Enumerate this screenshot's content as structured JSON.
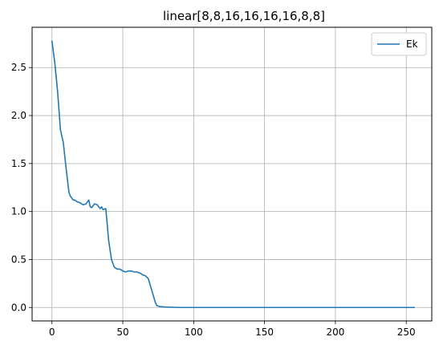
{
  "chart_data": {
    "type": "line",
    "title": "linear[8,8,16,16,16,16,8,8]",
    "xlabel": "",
    "ylabel": "",
    "xlim": [
      -14,
      268
    ],
    "ylim": [
      -0.14,
      2.92
    ],
    "xticks": [
      0,
      50,
      100,
      150,
      200,
      250
    ],
    "yticks": [
      0.0,
      0.5,
      1.0,
      1.5,
      2.0,
      2.5
    ],
    "xtick_labels": [
      "0",
      "50",
      "100",
      "150",
      "200",
      "250"
    ],
    "ytick_labels": [
      "0.0",
      "0.5",
      "1.0",
      "1.5",
      "2.0",
      "2.5"
    ],
    "grid": true,
    "legend": {
      "placement": "top-right"
    },
    "line_color": "#1f77b4",
    "series": [
      {
        "name": "Ek",
        "x": [
          0,
          2,
          4,
          6,
          8,
          10,
          12,
          13,
          14,
          15,
          16,
          18,
          20,
          22,
          24,
          26,
          27,
          28,
          30,
          32,
          34,
          35,
          36,
          38,
          40,
          42,
          44,
          46,
          48,
          50,
          52,
          54,
          56,
          58,
          60,
          62,
          64,
          66,
          68,
          70,
          72,
          73,
          74,
          76,
          80,
          90,
          100,
          120,
          150,
          180,
          200,
          230,
          256
        ],
        "y": [
          2.78,
          2.55,
          2.25,
          1.85,
          1.72,
          1.45,
          1.2,
          1.16,
          1.14,
          1.12,
          1.12,
          1.1,
          1.09,
          1.07,
          1.08,
          1.12,
          1.05,
          1.04,
          1.08,
          1.07,
          1.03,
          1.05,
          1.02,
          1.03,
          0.7,
          0.5,
          0.42,
          0.4,
          0.4,
          0.38,
          0.37,
          0.38,
          0.38,
          0.37,
          0.37,
          0.36,
          0.34,
          0.33,
          0.3,
          0.2,
          0.1,
          0.05,
          0.02,
          0.01,
          0.005,
          0.0,
          0.0,
          0.0,
          0.0,
          0.0,
          0.0,
          0.0,
          0.0
        ]
      }
    ]
  }
}
